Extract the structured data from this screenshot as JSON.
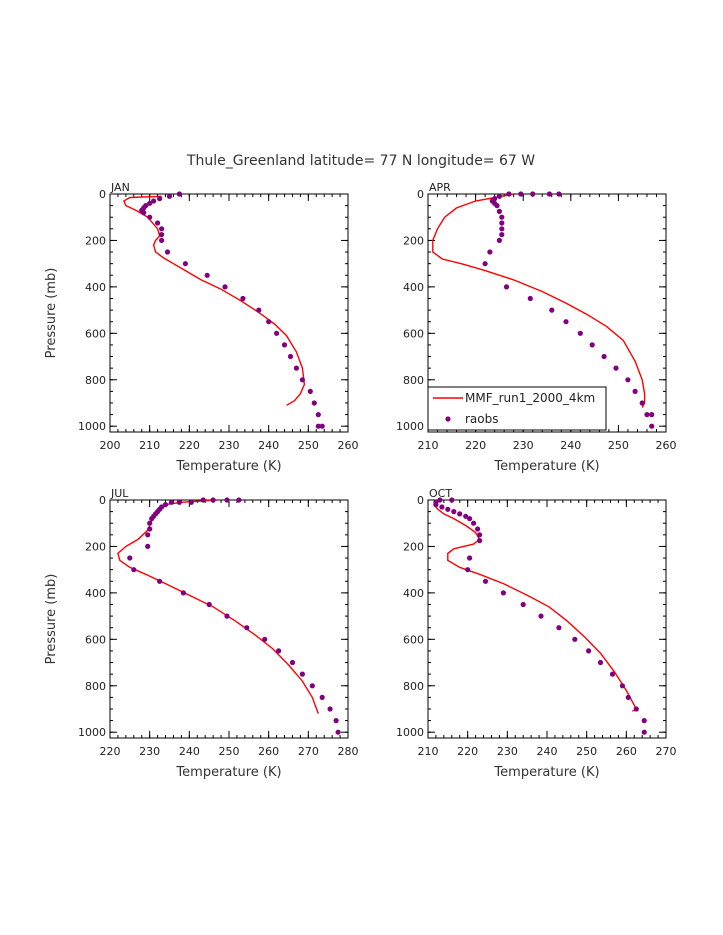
{
  "figure_title": "Thule_Greenland  latitude= 77 N longitude= 67 W",
  "legend": {
    "model": "MMF_run1_2000_4km",
    "obs": "raobs"
  },
  "colors": {
    "model": "#ff0000",
    "obs": "#800080",
    "axis": "#000000"
  },
  "chart_data": [
    {
      "type": "line",
      "panel": "JAN",
      "xlabel": "Temperature (K)",
      "ylabel": "Pressure (mb)",
      "xlim": [
        200,
        260
      ],
      "ylim": [
        0,
        1025
      ],
      "xticks": [
        200,
        210,
        220,
        230,
        240,
        250,
        260
      ],
      "yticks": [
        0,
        200,
        400,
        600,
        800,
        1000
      ],
      "series": [
        {
          "name": "MMF_run1_2000_4km",
          "kind": "line",
          "x": [
            213,
            205,
            203.5,
            204,
            206.5,
            209.5,
            212,
            212.5,
            211.5,
            211,
            211.5,
            213.5,
            216,
            219,
            223,
            228,
            233,
            237.5,
            241.5,
            244.5,
            247,
            248.5,
            249,
            248,
            246.5,
            244.5
          ],
          "y": [
            10,
            15,
            30,
            50,
            70,
            100,
            150,
            180,
            200,
            220,
            250,
            275,
            300,
            330,
            370,
            410,
            460,
            510,
            560,
            610,
            680,
            750,
            820,
            860,
            890,
            910
          ]
        },
        {
          "name": "raobs",
          "kind": "points",
          "x": [
            217.5,
            215,
            212.5,
            211,
            210,
            209,
            208.5,
            208,
            208.5,
            210,
            212,
            213,
            213,
            213,
            214.5,
            219,
            224.5,
            229,
            233.5,
            237.5,
            240,
            242,
            244,
            245.5,
            247,
            248.5,
            250.5,
            251.5,
            252.5,
            253.5,
            252.5
          ],
          "y": [
            0,
            10,
            20,
            30,
            40,
            50,
            60,
            70,
            80,
            100,
            125,
            150,
            175,
            200,
            250,
            300,
            350,
            400,
            450,
            500,
            550,
            600,
            650,
            700,
            750,
            800,
            850,
            900,
            950,
            1000,
            1000
          ]
        }
      ]
    },
    {
      "type": "line",
      "panel": "APR",
      "xlabel": "Temperature (K)",
      "ylabel": "",
      "xlim": [
        210,
        260
      ],
      "ylim": [
        0,
        1025
      ],
      "xticks": [
        210,
        220,
        230,
        240,
        250,
        260
      ],
      "yticks": [
        0,
        200,
        400,
        600,
        800,
        1000
      ],
      "series": [
        {
          "name": "MMF_run1_2000_4km",
          "kind": "line",
          "x": [
            228,
            220,
            216,
            213.5,
            212,
            211,
            211,
            213,
            217,
            222,
            228,
            234,
            239,
            243.5,
            247.5,
            251,
            253.5,
            255,
            255.5,
            255.5,
            255
          ],
          "y": [
            0,
            30,
            60,
            100,
            150,
            200,
            250,
            280,
            300,
            330,
            370,
            420,
            470,
            520,
            570,
            630,
            720,
            800,
            860,
            900,
            920
          ]
        },
        {
          "name": "raobs",
          "kind": "points",
          "x": [
            237.5,
            235.5,
            232,
            229.5,
            227,
            225,
            224,
            223.5,
            224,
            224.5,
            225,
            225.5,
            225.5,
            225.5,
            225.5,
            225,
            223,
            222,
            226.5,
            231.5,
            236,
            239,
            242,
            244.5,
            247,
            249.5,
            252,
            253.5,
            255,
            256,
            257,
            257
          ],
          "y": [
            0,
            0,
            0,
            0,
            0,
            10,
            20,
            30,
            40,
            50,
            75,
            100,
            125,
            150,
            175,
            200,
            250,
            300,
            400,
            450,
            500,
            550,
            600,
            650,
            700,
            750,
            800,
            850,
            900,
            950,
            950,
            1000
          ]
        }
      ]
    },
    {
      "type": "line",
      "panel": "JUL",
      "xlabel": "Temperature (K)",
      "ylabel": "Pressure (mb)",
      "xlim": [
        220,
        280
      ],
      "ylim": [
        0,
        1025
      ],
      "xticks": [
        220,
        230,
        240,
        250,
        260,
        270,
        280
      ],
      "yticks": [
        0,
        200,
        400,
        600,
        800,
        1000
      ],
      "series": [
        {
          "name": "MMF_run1_2000_4km",
          "kind": "line",
          "x": [
            247,
            238,
            234,
            232,
            231,
            230.5,
            229.5,
            227,
            224,
            222,
            222.5,
            225,
            229,
            234,
            240,
            246,
            251.5,
            256.5,
            261,
            265,
            268.5,
            271,
            272.5
          ],
          "y": [
            0,
            10,
            20,
            40,
            60,
            90,
            130,
            170,
            200,
            230,
            260,
            290,
            320,
            360,
            410,
            460,
            520,
            580,
            640,
            710,
            780,
            850,
            920
          ]
        },
        {
          "name": "raobs",
          "kind": "points",
          "x": [
            252.5,
            249.5,
            246,
            243.5,
            240.5,
            237.5,
            235.5,
            234,
            233,
            232.5,
            232,
            231.5,
            231,
            230.5,
            230,
            230,
            229.5,
            229.5,
            225,
            226,
            232.5,
            238.5,
            245,
            249.5,
            254.5,
            259,
            262.5,
            266,
            268.5,
            271,
            273.5,
            275.5,
            277,
            277.5
          ],
          "y": [
            0,
            0,
            0,
            0,
            10,
            10,
            10,
            20,
            30,
            40,
            50,
            60,
            70,
            80,
            100,
            125,
            150,
            200,
            250,
            300,
            350,
            400,
            450,
            500,
            550,
            600,
            650,
            700,
            750,
            800,
            850,
            900,
            950,
            1000
          ]
        }
      ]
    },
    {
      "type": "line",
      "panel": "OCT",
      "xlabel": "Temperature (K)",
      "ylabel": "",
      "xlim": [
        210,
        270
      ],
      "ylim": [
        0,
        1025
      ],
      "xticks": [
        210,
        220,
        230,
        240,
        250,
        260,
        270
      ],
      "yticks": [
        0,
        200,
        400,
        600,
        800,
        1000
      ],
      "series": [
        {
          "name": "MMF_run1_2000_4km",
          "kind": "line",
          "x": [
            211.5,
            212.5,
            214,
            216.5,
            219.5,
            222,
            223,
            221.5,
            219,
            216.5,
            215,
            215,
            218,
            223,
            229,
            235,
            240.5,
            245,
            249.5,
            253.5,
            257,
            260,
            262.5,
            261.5
          ],
          "y": [
            20,
            40,
            60,
            80,
            110,
            140,
            170,
            190,
            200,
            210,
            230,
            260,
            290,
            320,
            360,
            410,
            460,
            520,
            590,
            660,
            740,
            820,
            900,
            910
          ]
        },
        {
          "name": "raobs",
          "kind": "points",
          "x": [
            216,
            213,
            212,
            212,
            213.5,
            215,
            216.5,
            218,
            219.5,
            220.5,
            221.5,
            222.5,
            223,
            223,
            220.5,
            220,
            224.5,
            229,
            234,
            238.5,
            243,
            247,
            250.5,
            253.5,
            256.5,
            259,
            260.5,
            262.5,
            264.5,
            264.5
          ],
          "y": [
            0,
            0,
            10,
            20,
            30,
            40,
            50,
            60,
            70,
            80,
            100,
            125,
            150,
            175,
            250,
            300,
            350,
            400,
            450,
            500,
            550,
            600,
            650,
            700,
            750,
            800,
            850,
            900,
            950,
            1000
          ]
        }
      ]
    }
  ]
}
